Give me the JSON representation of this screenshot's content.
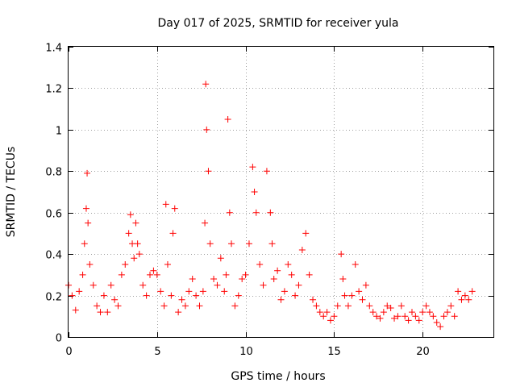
{
  "chart_data": {
    "type": "scatter",
    "title": "Day 017 of 2025, SRMTID for receiver yula",
    "xlabel": "GPS time / hours",
    "ylabel": "SRMTID / TECUs",
    "xlim": [
      0,
      24
    ],
    "ylim": [
      0,
      1.4
    ],
    "xticks": [
      0,
      5,
      10,
      15,
      20
    ],
    "xtick_labels": [
      "0",
      "5",
      "10",
      "15",
      "20"
    ],
    "yticks": [
      0,
      0.2,
      0.4,
      0.6,
      0.8,
      1.0,
      1.2,
      1.4
    ],
    "ytick_labels": [
      "0",
      "0.2",
      "0.4",
      "0.6",
      "0.8",
      "1",
      "1.2",
      "1.4"
    ],
    "grid": true,
    "marker": "plus",
    "color": "#ff0000",
    "series": [
      {
        "name": "SRMTID",
        "x": [
          0.0,
          0.2,
          0.4,
          0.6,
          0.8,
          0.9,
          1.0,
          1.05,
          1.1,
          1.2,
          1.4,
          1.6,
          1.8,
          2.0,
          2.2,
          2.4,
          2.6,
          2.8,
          3.0,
          3.2,
          3.4,
          3.5,
          3.6,
          3.7,
          3.8,
          3.9,
          4.0,
          4.2,
          4.4,
          4.6,
          4.8,
          5.0,
          5.2,
          5.4,
          5.5,
          5.6,
          5.8,
          5.9,
          6.0,
          6.2,
          6.4,
          6.6,
          6.8,
          7.0,
          7.2,
          7.4,
          7.6,
          7.7,
          7.75,
          7.8,
          7.9,
          8.0,
          8.2,
          8.4,
          8.6,
          8.8,
          8.9,
          9.0,
          9.1,
          9.2,
          9.4,
          9.6,
          9.8,
          10.0,
          10.2,
          10.4,
          10.5,
          10.6,
          10.8,
          11.0,
          11.2,
          11.4,
          11.5,
          11.6,
          11.8,
          12.0,
          12.2,
          12.4,
          12.6,
          12.8,
          13.0,
          13.2,
          13.4,
          13.6,
          13.8,
          14.0,
          14.2,
          14.4,
          14.6,
          14.8,
          15.0,
          15.2,
          15.4,
          15.5,
          15.6,
          15.8,
          16.0,
          16.2,
          16.4,
          16.6,
          16.8,
          17.0,
          17.2,
          17.4,
          17.6,
          17.8,
          18.0,
          18.2,
          18.4,
          18.6,
          18.8,
          19.0,
          19.2,
          19.4,
          19.6,
          19.8,
          20.0,
          20.2,
          20.4,
          20.6,
          20.8,
          21.0,
          21.2,
          21.4,
          21.6,
          21.8,
          22.0,
          22.2,
          22.4,
          22.6,
          22.8
        ],
        "y": [
          0.25,
          0.2,
          0.13,
          0.22,
          0.3,
          0.45,
          0.62,
          0.79,
          0.55,
          0.35,
          0.25,
          0.15,
          0.12,
          0.2,
          0.12,
          0.25,
          0.18,
          0.15,
          0.3,
          0.35,
          0.5,
          0.59,
          0.45,
          0.38,
          0.55,
          0.45,
          0.4,
          0.25,
          0.2,
          0.3,
          0.32,
          0.3,
          0.22,
          0.15,
          0.64,
          0.35,
          0.2,
          0.5,
          0.62,
          0.12,
          0.18,
          0.15,
          0.22,
          0.28,
          0.2,
          0.15,
          0.22,
          0.55,
          1.22,
          1.0,
          0.8,
          0.45,
          0.28,
          0.25,
          0.38,
          0.22,
          0.3,
          1.05,
          0.6,
          0.45,
          0.15,
          0.2,
          0.28,
          0.3,
          0.45,
          0.82,
          0.7,
          0.6,
          0.35,
          0.25,
          0.8,
          0.6,
          0.45,
          0.28,
          0.32,
          0.18,
          0.22,
          0.35,
          0.3,
          0.2,
          0.25,
          0.42,
          0.5,
          0.3,
          0.18,
          0.15,
          0.12,
          0.1,
          0.12,
          0.08,
          0.1,
          0.15,
          0.4,
          0.28,
          0.2,
          0.15,
          0.2,
          0.35,
          0.22,
          0.18,
          0.25,
          0.15,
          0.12,
          0.1,
          0.09,
          0.12,
          0.15,
          0.14,
          0.09,
          0.1,
          0.15,
          0.1,
          0.08,
          0.12,
          0.1,
          0.08,
          0.12,
          0.15,
          0.12,
          0.1,
          0.07,
          0.05,
          0.1,
          0.12,
          0.15,
          0.1,
          0.22,
          0.18,
          0.2,
          0.18,
          0.22
        ]
      }
    ]
  }
}
